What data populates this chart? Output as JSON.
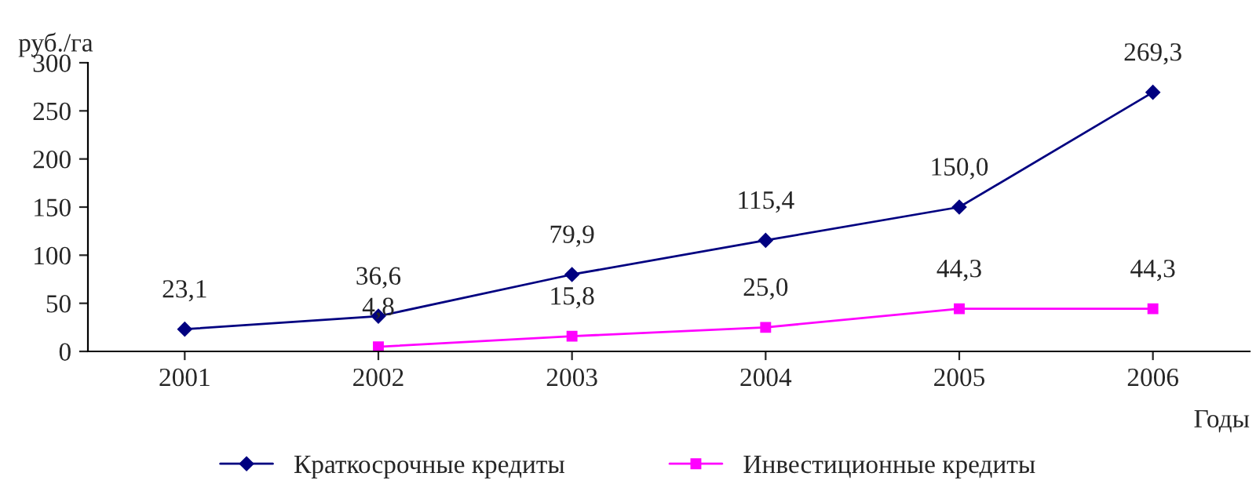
{
  "chart_data": {
    "type": "line",
    "ylabel": "руб./га",
    "xlabel": "Годы",
    "categories": [
      "2001",
      "2002",
      "2003",
      "2004",
      "2005",
      "2006"
    ],
    "series": [
      {
        "name": "Краткосрочные кредиты",
        "color": "#000080",
        "marker": "diamond",
        "values": [
          23.1,
          36.6,
          79.9,
          115.4,
          150.0,
          269.3
        ],
        "value_labels": [
          "23,1",
          "36,6",
          "79,9",
          "115,4",
          "150,0",
          "269,3"
        ]
      },
      {
        "name": "Инвестиционные кредиты",
        "color": "#ff00ff",
        "marker": "square",
        "values": [
          null,
          4.8,
          15.8,
          25.0,
          44.3,
          44.3
        ],
        "value_labels": [
          null,
          "4,8",
          "15,8",
          "25,0",
          "44,3",
          "44,3"
        ]
      }
    ],
    "ylim": [
      0,
      300
    ],
    "yticks": [
      0,
      50,
      100,
      150,
      200,
      250,
      300
    ],
    "grid": false,
    "legend": "bottom"
  }
}
